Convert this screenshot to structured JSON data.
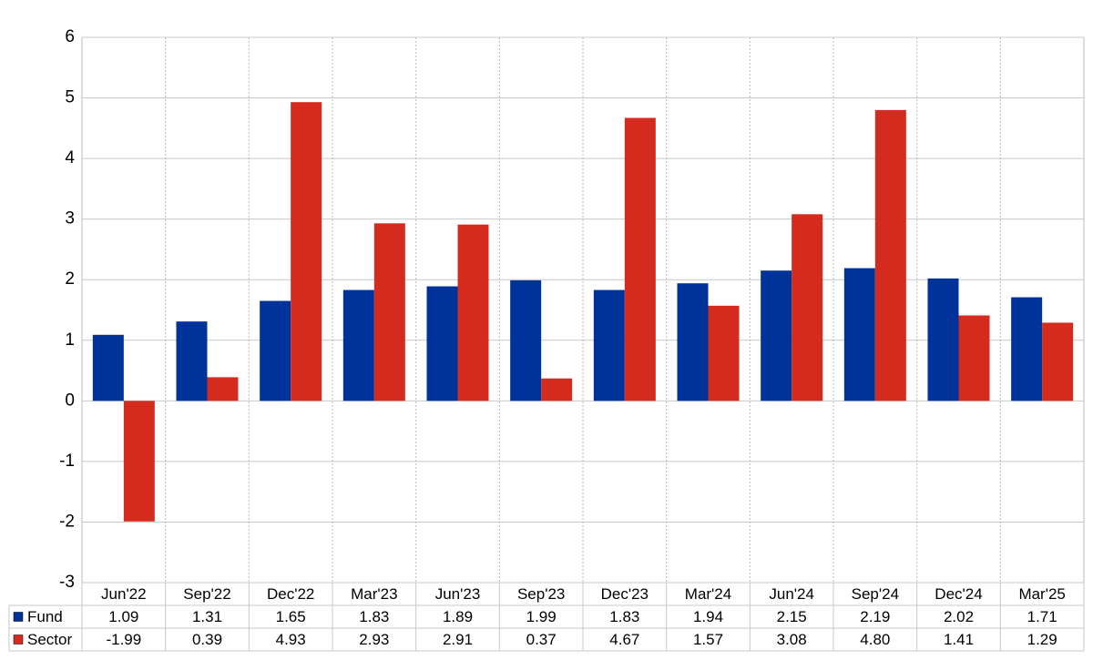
{
  "chart_data": {
    "type": "bar",
    "categories": [
      "Jun'22",
      "Sep'22",
      "Dec'22",
      "Mar'23",
      "Jun'23",
      "Sep'23",
      "Dec'23",
      "Mar'24",
      "Jun'24",
      "Sep'24",
      "Dec'24",
      "Mar'25"
    ],
    "series": [
      {
        "name": "Fund",
        "color": "#003399",
        "values": [
          1.09,
          1.31,
          1.65,
          1.83,
          1.89,
          1.99,
          1.83,
          1.94,
          2.15,
          2.19,
          2.02,
          1.71
        ],
        "value_labels": [
          "1.09",
          "1.31",
          "1.65",
          "1.83",
          "1.89",
          "1.99",
          "1.83",
          "1.94",
          "2.15",
          "2.19",
          "2.02",
          "1.71"
        ]
      },
      {
        "name": "Sector",
        "color": "#d52b1e",
        "values": [
          -1.99,
          0.39,
          4.93,
          2.93,
          2.91,
          0.37,
          4.67,
          1.57,
          3.08,
          4.8,
          1.41,
          1.29
        ],
        "value_labels": [
          "-1.99",
          "0.39",
          "4.93",
          "2.93",
          "2.91",
          "0.37",
          "4.67",
          "1.57",
          "3.08",
          "4.80",
          "1.41",
          "1.29"
        ]
      }
    ],
    "ylim": [
      -3,
      6
    ],
    "yticks": [
      -3,
      -2,
      -1,
      0,
      1,
      2,
      3,
      4,
      5,
      6
    ],
    "grid": true,
    "negative_label_color": "#ff0000"
  }
}
